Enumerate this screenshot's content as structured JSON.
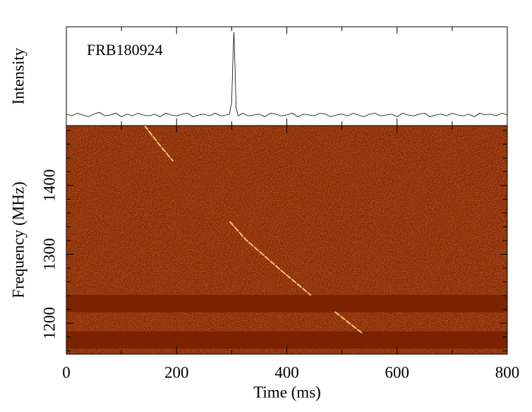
{
  "chart_data": [
    {
      "type": "line",
      "annotation": "FRB180924",
      "y_label": "Intensity",
      "color": "#000000",
      "xlim": [
        0,
        800
      ],
      "ylim": [
        -0.12,
        1.0
      ],
      "x": [
        0,
        10,
        20,
        30,
        40,
        50,
        60,
        70,
        80,
        90,
        100,
        110,
        120,
        130,
        140,
        150,
        160,
        170,
        180,
        190,
        200,
        210,
        220,
        230,
        240,
        250,
        260,
        270,
        280,
        290,
        296,
        300,
        302,
        304,
        306,
        308,
        312,
        320,
        330,
        340,
        350,
        360,
        370,
        380,
        390,
        400,
        410,
        420,
        430,
        440,
        450,
        460,
        470,
        480,
        490,
        500,
        510,
        520,
        530,
        540,
        550,
        560,
        570,
        580,
        590,
        600,
        610,
        620,
        630,
        640,
        650,
        660,
        670,
        680,
        690,
        700,
        710,
        720,
        730,
        740,
        750,
        760,
        770,
        780,
        790,
        800
      ],
      "values": [
        0.01,
        -0.01,
        0.02,
        0.0,
        -0.02,
        0.01,
        0.03,
        -0.01,
        0.0,
        0.02,
        -0.02,
        0.01,
        -0.01,
        0.02,
        0.0,
        -0.01,
        0.01,
        -0.02,
        0.02,
        0.0,
        -0.01,
        0.01,
        0.02,
        -0.02,
        0.0,
        0.01,
        -0.01,
        0.02,
        -0.01,
        0.0,
        0.01,
        0.15,
        0.6,
        0.94,
        0.55,
        0.08,
        -0.01,
        0.02,
        -0.01,
        0.0,
        0.01,
        -0.02,
        0.02,
        0.01,
        -0.01,
        0.0,
        0.02,
        -0.02,
        0.01,
        0.0,
        -0.01,
        0.02,
        0.01,
        -0.02,
        0.0,
        0.01,
        -0.01,
        0.02,
        0.0,
        -0.02,
        0.01,
        0.02,
        -0.01,
        0.0,
        0.01,
        -0.02,
        0.02,
        0.0,
        -0.01,
        0.01,
        0.02,
        -0.02,
        0.0,
        0.01,
        -0.01,
        0.02,
        0.0,
        -0.01,
        0.01,
        -0.02,
        0.02,
        0.0,
        0.01,
        -0.01,
        0.02,
        0.0
      ]
    },
    {
      "type": "spectrogram",
      "x_label": "Time (ms)",
      "y_label": "Frequency (MHz)",
      "xlim": [
        0,
        800
      ],
      "ylim": [
        1155,
        1487
      ],
      "xticks": [
        0,
        200,
        400,
        600,
        800
      ],
      "xticks_minor": [
        100,
        300,
        500,
        700
      ],
      "yticks": [
        1200,
        1300,
        1400
      ],
      "yticks_minor": [
        1160,
        1180,
        1220,
        1240,
        1260,
        1280,
        1320,
        1340,
        1360,
        1380,
        1420,
        1440,
        1460,
        1480
      ],
      "background": "#8a2a06",
      "masked_bands": [
        [
          1216,
          1241
        ],
        [
          1163,
          1188
        ]
      ],
      "mask_color": "#7b2200",
      "signal": {
        "color": "#ffd47c",
        "x": [
          142,
          170,
          193,
          240,
          297,
          326,
          392,
          443,
          470,
          488,
          536
        ],
        "values": [
          1487,
          1458,
          1436,
          null,
          1347,
          1321,
          1275,
          1241,
          null,
          1216,
          1186
        ]
      }
    }
  ]
}
